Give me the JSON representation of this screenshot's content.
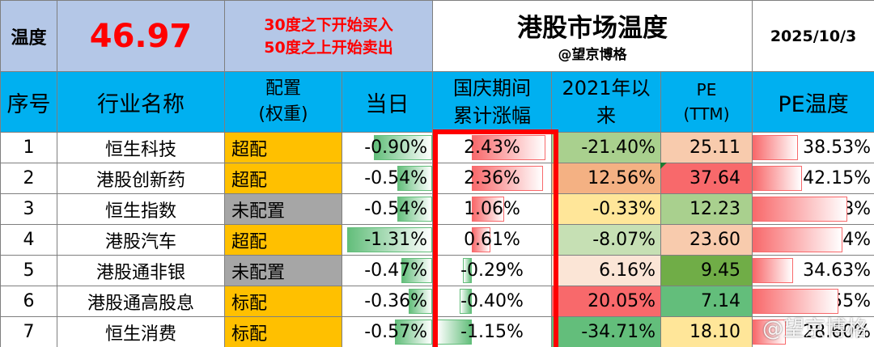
{
  "header": {
    "temp_label": "温度",
    "temp_value": "46.97",
    "rule_line1": "30度之下开始买入",
    "rule_line2": "50度之上开始卖出",
    "title": "港股市场温度",
    "author": "@望京博格",
    "date": "2025/10/3"
  },
  "columns": {
    "seq": "序号",
    "name": "行业名称",
    "alloc_line1": "配置",
    "alloc_line2": "(权重)",
    "today": "当日",
    "holiday_line1": "国庆期间",
    "holiday_line2": "累计涨幅",
    "since_line1": "2021年以",
    "since_line2": "来",
    "pe_line1": "PE",
    "pe_line2": "(TTM)",
    "pe_temp": "PE温度"
  },
  "colors": {
    "overweight": "#ffc000",
    "unallocated": "#a6a6a6",
    "neutral": "#ffc000",
    "header_blue": "#00b0f0",
    "label_blue": "#b4c7e7",
    "highlight_red": "#ff0000"
  },
  "rows": [
    {
      "seq": "1",
      "name": "恒生科技",
      "alloc": "超配",
      "alloc_type": "overweight",
      "today": "-0.90%",
      "today_val": -0.9,
      "holiday": "2.43%",
      "holiday_val": 2.43,
      "since": "-21.40%",
      "since_color": "#a9d08e",
      "pe": "25.11",
      "pe_color": "#f8cbad",
      "pet": "38.53%",
      "pet_val": 38.53
    },
    {
      "seq": "2",
      "name": "港股创新药",
      "alloc": "超配",
      "alloc_type": "overweight",
      "today": "-0.54%",
      "today_val": -0.54,
      "holiday": "2.36%",
      "holiday_val": 2.36,
      "since": "12.56%",
      "since_color": "#f4b183",
      "pe": "37.64",
      "pe_color": "#f8696b",
      "pet": "42.15%",
      "pet_val": 42.15
    },
    {
      "seq": "3",
      "name": "恒生指数",
      "alloc": "未配置",
      "alloc_type": "unallocated",
      "today": "-0.54%",
      "today_val": -0.54,
      "holiday": "1.06%",
      "holiday_val": 1.06,
      "since": "-0.33%",
      "since_color": "#ffe699",
      "pe": "12.23",
      "pe_color": "#a9d08e",
      "pet": "81.38%",
      "pet_val": 81.38
    },
    {
      "seq": "4",
      "name": "港股汽车",
      "alloc": "超配",
      "alloc_type": "overweight",
      "today": "-1.31%",
      "today_val": -1.31,
      "holiday": "0.61%",
      "holiday_val": 0.61,
      "since": "-8.07%",
      "since_color": "#c6e0b4",
      "pe": "23.60",
      "pe_color": "#f8cbad",
      "pet": "76.84%",
      "pet_val": 76.84
    },
    {
      "seq": "5",
      "name": "港股通非银",
      "alloc": "未配置",
      "alloc_type": "unallocated",
      "today": "-0.47%",
      "today_val": -0.47,
      "holiday": "-0.29%",
      "holiday_val": -0.29,
      "since": "6.16%",
      "since_color": "#fbe5d6",
      "pe": "9.45",
      "pe_color": "#70ad47",
      "pet": "34.63%",
      "pet_val": 34.63
    },
    {
      "seq": "6",
      "name": "港股通高股息",
      "alloc": "标配",
      "alloc_type": "neutral",
      "today": "-0.36%",
      "today_val": -0.36,
      "holiday": "-0.40%",
      "holiday_val": -0.4,
      "since": "20.05%",
      "since_color": "#f8696b",
      "pe": "7.14",
      "pe_color": "#63be7b",
      "pet": "73.55%",
      "pet_val": 73.55
    },
    {
      "seq": "7",
      "name": "恒生消费",
      "alloc": "标配",
      "alloc_type": "neutral",
      "today": "-0.57%",
      "today_val": -0.57,
      "holiday": "-1.15%",
      "holiday_val": -1.15,
      "since": "-34.71%",
      "since_color": "#63be7b",
      "pe": "18.10",
      "pe_color": "#ffe699",
      "pet": "28.60%",
      "pet_val": 28.6
    }
  ],
  "watermark": "@望京博格"
}
